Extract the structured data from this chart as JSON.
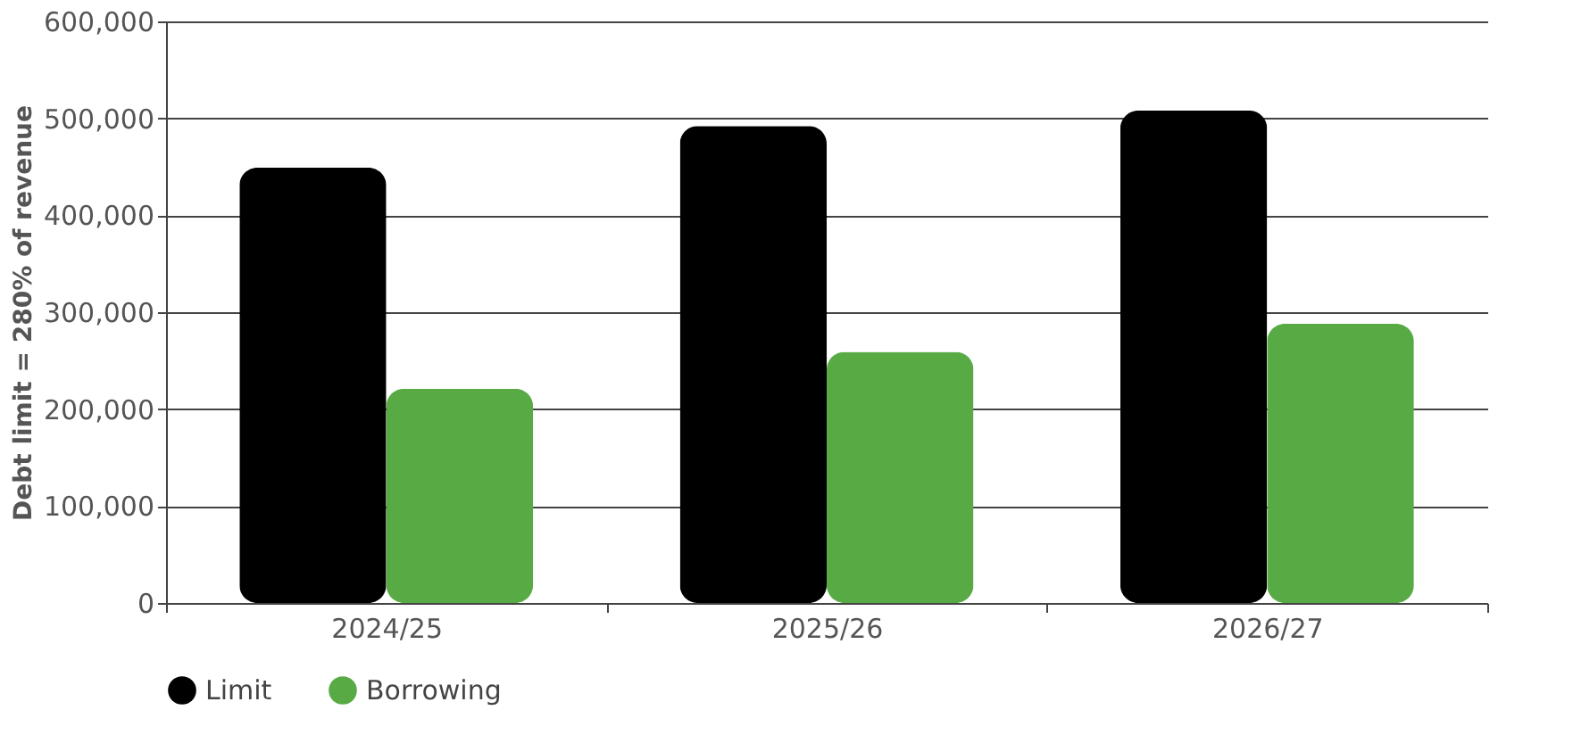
{
  "chart_data": {
    "type": "bar",
    "ylabel": "Debt limit = 280% of revenue",
    "categories": [
      "2024/25",
      "2025/26",
      "2026/27"
    ],
    "series": [
      {
        "name": "Limit",
        "color": "#000000",
        "values": [
          449000,
          492000,
          508000
        ]
      },
      {
        "name": "Borrowing",
        "color": "#58ab44",
        "values": [
          221000,
          259000,
          288000
        ]
      }
    ],
    "ylim": [
      0,
      600000
    ],
    "yticks": [
      0,
      {
        "value": 100000,
        "label": "100,000"
      },
      {
        "value": 200000,
        "label": "200,000"
      },
      {
        "value": 300000,
        "label": "300,000"
      },
      {
        "value": 400000,
        "label": "400,000"
      },
      {
        "value": 500000,
        "label": "500,000"
      },
      {
        "value": 600000,
        "label": "600,000"
      }
    ],
    "grid": "y",
    "legend": "bottom"
  }
}
